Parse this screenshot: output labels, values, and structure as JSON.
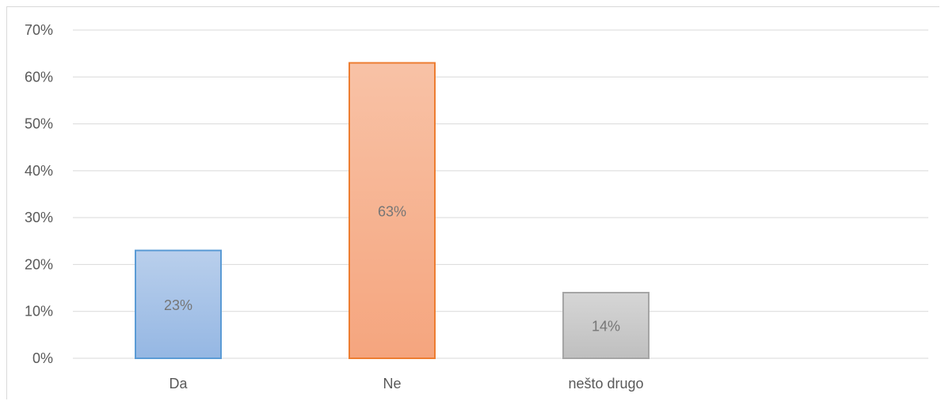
{
  "chart_data": {
    "type": "bar",
    "categories": [
      "Da",
      "Ne",
      "nešto drugo"
    ],
    "values": [
      23,
      63,
      14
    ],
    "data_labels": [
      "23%",
      "63%",
      "14%"
    ],
    "ylim": [
      0,
      70
    ],
    "yticks": [
      0,
      10,
      20,
      30,
      40,
      50,
      60,
      70
    ],
    "ytick_labels": [
      "0%",
      "10%",
      "20%",
      "30%",
      "40%",
      "50%",
      "60%",
      "70%"
    ],
    "grid": true,
    "legend": "none",
    "bar_styles": [
      {
        "fill_top": "#b9cfec",
        "fill_bottom": "#95b7e3",
        "stroke": "#5b9bd5"
      },
      {
        "fill_top": "#f8c2a6",
        "fill_bottom": "#f5a57e",
        "stroke": "#ed7d31"
      },
      {
        "fill_top": "#d6d6d6",
        "fill_bottom": "#bfbfbf",
        "stroke": "#a5a5a5"
      }
    ],
    "gridline_color": "#d9d9d9"
  }
}
